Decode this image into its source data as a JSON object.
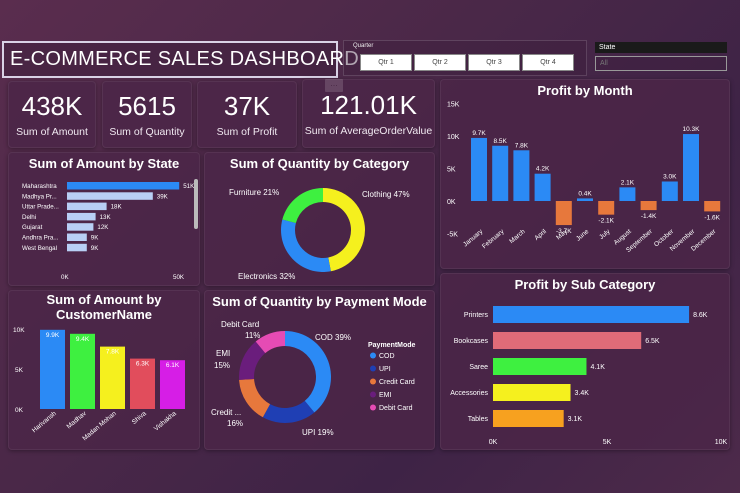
{
  "header": {
    "title": "E-COMMERCE SALES DASHBOARD"
  },
  "quarter_slicer": {
    "label": "Quarter",
    "options": [
      "Qtr 1",
      "Qtr 2",
      "Qtr 3",
      "Qtr 4"
    ]
  },
  "state_slicer": {
    "label": "State",
    "value": "All"
  },
  "more_options": "...",
  "kpis": [
    {
      "value": "438K",
      "label": "Sum of Amount"
    },
    {
      "value": "5615",
      "label": "Sum of Quantity"
    },
    {
      "value": "37K",
      "label": "Sum of Profit"
    },
    {
      "value": "121.01K",
      "label": "Sum of AverageOrderValue"
    }
  ],
  "colors": {
    "blue": "#2b8af5",
    "navy": "#1f3fb4",
    "orange": "#e7783c",
    "purple": "#6a1d7c",
    "pink": "#e54bb4",
    "yellow": "#f5f01e",
    "green": "#3ef040",
    "red": "#e14d5c",
    "magenta": "#d61ee6",
    "lightblue": "#b8cff5",
    "rose": "#e06b78",
    "amber": "#f7a11f"
  },
  "chart_data": [
    {
      "id": "amount_by_state",
      "type": "bar",
      "orientation": "horizontal",
      "title": "Sum of Amount by State",
      "categories": [
        "Maharashtra",
        "Madhya Pr...",
        "Uttar Prade...",
        "Delhi",
        "Gujarat",
        "Andhra Pra...",
        "West Bengal"
      ],
      "values": [
        51,
        39,
        18,
        13,
        12,
        9,
        9
      ],
      "value_labels": [
        "51K",
        "39K",
        "18K",
        "13K",
        "12K",
        "9K",
        "9K"
      ],
      "xticks": [
        "0K",
        "50K"
      ],
      "xlim": [
        0,
        50
      ]
    },
    {
      "id": "quantity_by_category",
      "type": "pie",
      "donut": true,
      "title": "Sum of Quantity by Category",
      "categories": [
        "Clothing",
        "Electronics",
        "Furniture"
      ],
      "values": [
        47,
        32,
        21
      ],
      "labels": [
        "Clothing 47%",
        "Electronics 32%",
        "Furniture 21%"
      ]
    },
    {
      "id": "amount_by_customer",
      "type": "bar",
      "orientation": "vertical",
      "title": "Sum of Amount by CustomerName",
      "categories": [
        "Harivansh",
        "Madhav",
        "Madan Mohan",
        "Shiva",
        "Vishakha"
      ],
      "values": [
        9.9,
        9.4,
        7.8,
        6.3,
        6.1
      ],
      "value_labels": [
        "9.9K",
        "9.4K",
        "7.8K",
        "6.3K",
        "6.1K"
      ],
      "yticks": [
        "10K",
        "5K",
        "0K"
      ],
      "ylim": [
        0,
        10
      ]
    },
    {
      "id": "quantity_by_payment",
      "type": "pie",
      "donut": true,
      "title": "Sum of Quantity by Payment Mode",
      "legend_title": "PaymentMode",
      "categories": [
        "COD",
        "UPI",
        "Credit Card",
        "EMI",
        "Debit Card"
      ],
      "values": [
        39,
        19,
        16,
        15,
        11
      ],
      "labels": [
        "COD 39%",
        "UPI 19%",
        "Credit ...",
        "EMI",
        "Debit Card"
      ],
      "pct_labels": [
        "",
        "",
        "16%",
        "15%",
        "11%"
      ]
    },
    {
      "id": "profit_by_month",
      "type": "bar",
      "orientation": "vertical",
      "title": "Profit by Month",
      "categories": [
        "January",
        "February",
        "March",
        "April",
        "May",
        "June",
        "July",
        "August",
        "September",
        "October",
        "November",
        "December"
      ],
      "values": [
        9.7,
        8.5,
        7.8,
        4.2,
        -3.7,
        0.4,
        -2.1,
        2.1,
        -1.4,
        3.0,
        10.3,
        -1.6
      ],
      "value_labels": [
        "9.7K",
        "8.5K",
        "7.8K",
        "4.2K",
        "-3.7K",
        "0.4K",
        "-2.1K",
        "2.1K",
        "-1.4K",
        "3.0K",
        "10.3K",
        "-1.6K"
      ],
      "yticks": [
        "15K",
        "10K",
        "5K",
        "0K",
        "-5K"
      ],
      "ylim": [
        -5,
        15
      ]
    },
    {
      "id": "profit_by_subcategory",
      "type": "bar",
      "orientation": "horizontal",
      "title": "Profit by Sub Category",
      "categories": [
        "Printers",
        "Bookcases",
        "Saree",
        "Accessories",
        "Tables"
      ],
      "values": [
        8.6,
        6.5,
        4.1,
        3.4,
        3.1
      ],
      "value_labels": [
        "8.6K",
        "6.5K",
        "4.1K",
        "3.4K",
        "3.1K"
      ],
      "xticks": [
        "0K",
        "5K",
        "10K"
      ],
      "xlim": [
        0,
        10
      ]
    }
  ]
}
